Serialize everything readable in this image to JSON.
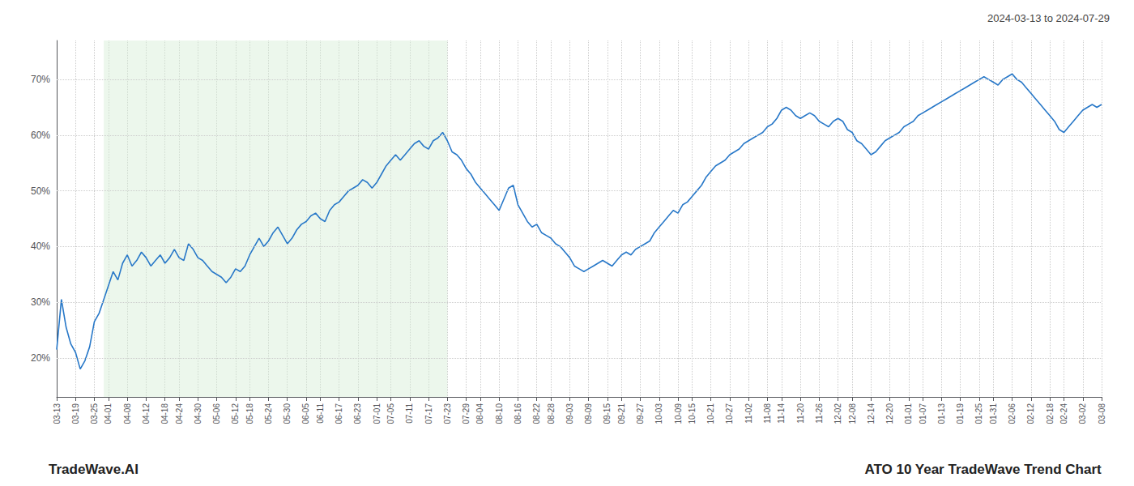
{
  "chart_data": {
    "type": "line",
    "annotations": [
      "2024-03-13 to 2024-07-29",
      "TradeWave.AI",
      "ATO 10 Year TradeWave Trend Chart"
    ],
    "color": "#2878c8",
    "grid": true,
    "ylim": [
      13,
      77
    ],
    "yticks": [
      {
        "value": 20,
        "label": "20%"
      },
      {
        "value": 30,
        "label": "30%"
      },
      {
        "value": 40,
        "label": "40%"
      },
      {
        "value": 50,
        "label": "50%"
      },
      {
        "value": 60,
        "label": "60%"
      },
      {
        "value": 70,
        "label": "70%"
      }
    ],
    "shade": {
      "from": 10,
      "to": 83,
      "color": "#d4edd4"
    },
    "categories": [
      "03-13",
      null,
      null,
      null,
      "03-19",
      null,
      null,
      null,
      "03-25",
      null,
      null,
      "04-01",
      null,
      null,
      null,
      "04-08",
      null,
      null,
      null,
      "04-12",
      null,
      null,
      null,
      "04-18",
      null,
      null,
      "04-24",
      null,
      null,
      null,
      "04-30",
      null,
      null,
      null,
      "05-06",
      null,
      null,
      null,
      "05-12",
      null,
      null,
      "05-18",
      null,
      null,
      null,
      "05-24",
      null,
      null,
      null,
      "05-30",
      null,
      null,
      null,
      "06-05",
      null,
      null,
      "06-11",
      null,
      null,
      null,
      "06-17",
      null,
      null,
      null,
      "06-23",
      null,
      null,
      null,
      "07-01",
      null,
      null,
      "07-05",
      null,
      null,
      null,
      "07-11",
      null,
      null,
      null,
      "07-17",
      null,
      null,
      null,
      "07-23",
      null,
      null,
      null,
      "07-29",
      null,
      null,
      "08-04",
      null,
      null,
      null,
      "08-10",
      null,
      null,
      null,
      "08-16",
      null,
      null,
      null,
      "08-22",
      null,
      null,
      "08-28",
      null,
      null,
      null,
      "09-03",
      null,
      null,
      null,
      "09-09",
      null,
      null,
      null,
      "09-15",
      null,
      null,
      "09-21",
      null,
      null,
      null,
      "09-27",
      null,
      null,
      null,
      "10-03",
      null,
      null,
      null,
      "10-09",
      null,
      null,
      "10-15",
      null,
      null,
      null,
      "10-21",
      null,
      null,
      null,
      "10-27",
      null,
      null,
      null,
      "11-02",
      null,
      null,
      null,
      "11-08",
      null,
      null,
      "11-14",
      null,
      null,
      null,
      "11-20",
      null,
      null,
      null,
      "11-26",
      null,
      null,
      null,
      "12-02",
      null,
      null,
      "12-08",
      null,
      null,
      null,
      "12-14",
      null,
      null,
      null,
      "12-20",
      null,
      null,
      null,
      "01-01",
      null,
      null,
      "01-07",
      null,
      null,
      null,
      "01-13",
      null,
      null,
      null,
      "01-19",
      null,
      null,
      null,
      "01-25",
      null,
      null,
      "01-31",
      null,
      null,
      null,
      "02-06",
      null,
      null,
      null,
      "02-12",
      null,
      null,
      null,
      "02-18",
      null,
      null,
      "02-24",
      null,
      null,
      null,
      "03-02",
      null,
      null,
      null,
      "03-08"
    ],
    "values": [
      21.5,
      30.5,
      25.5,
      22.5,
      21.0,
      18.0,
      19.5,
      22.0,
      26.5,
      28.0,
      30.5,
      33.0,
      35.5,
      34.0,
      37.0,
      38.5,
      36.5,
      37.5,
      39.0,
      38.0,
      36.5,
      37.5,
      38.5,
      37.0,
      38.0,
      39.5,
      38.0,
      37.5,
      40.5,
      39.5,
      38.0,
      37.5,
      36.5,
      35.5,
      35.0,
      34.5,
      33.5,
      34.5,
      36.0,
      35.5,
      36.5,
      38.5,
      40.0,
      41.5,
      40.0,
      41.0,
      42.5,
      43.5,
      42.0,
      40.5,
      41.5,
      43.0,
      44.0,
      44.5,
      45.5,
      46.0,
      45.0,
      44.5,
      46.5,
      47.5,
      48.0,
      49.0,
      50.0,
      50.5,
      51.0,
      52.0,
      51.5,
      50.5,
      51.5,
      53.0,
      54.5,
      55.5,
      56.5,
      55.5,
      56.5,
      57.5,
      58.5,
      59.0,
      58.0,
      57.5,
      59.0,
      59.5,
      60.5,
      59.0,
      57.0,
      56.5,
      55.5,
      54.0,
      53.0,
      51.5,
      50.5,
      49.5,
      48.5,
      47.5,
      46.5,
      48.5,
      50.5,
      51.0,
      47.5,
      46.0,
      44.5,
      43.5,
      44.0,
      42.5,
      42.0,
      41.5,
      40.5,
      40.0,
      39.0,
      38.0,
      36.5,
      36.0,
      35.5,
      36.0,
      36.5,
      37.0,
      37.5,
      37.0,
      36.5,
      37.5,
      38.5,
      39.0,
      38.5,
      39.5,
      40.0,
      40.5,
      41.0,
      42.5,
      43.5,
      44.5,
      45.5,
      46.5,
      46.0,
      47.5,
      48.0,
      49.0,
      50.0,
      51.0,
      52.5,
      53.5,
      54.5,
      55.0,
      55.5,
      56.5,
      57.0,
      57.5,
      58.5,
      59.0,
      59.5,
      60.0,
      60.5,
      61.5,
      62.0,
      63.0,
      64.5,
      65.0,
      64.5,
      63.5,
      63.0,
      63.5,
      64.0,
      63.5,
      62.5,
      62.0,
      61.5,
      62.5,
      63.0,
      62.5,
      61.0,
      60.5,
      59.0,
      58.5,
      57.5,
      56.5,
      57.0,
      58.0,
      59.0,
      59.5,
      60.0,
      60.5,
      61.5,
      62.0,
      62.5,
      63.5,
      64.0,
      64.5,
      65.0,
      65.5,
      66.0,
      66.5,
      67.0,
      67.5,
      68.0,
      68.5,
      69.0,
      69.5,
      70.0,
      70.5,
      70.0,
      69.5,
      69.0,
      70.0,
      70.5,
      71.0,
      70.0,
      69.5,
      68.5,
      67.5,
      66.5,
      65.5,
      64.5,
      63.5,
      62.5,
      61.0,
      60.5,
      61.5,
      62.5,
      63.5,
      64.5,
      65.0,
      65.5,
      65.0,
      65.5
    ]
  }
}
